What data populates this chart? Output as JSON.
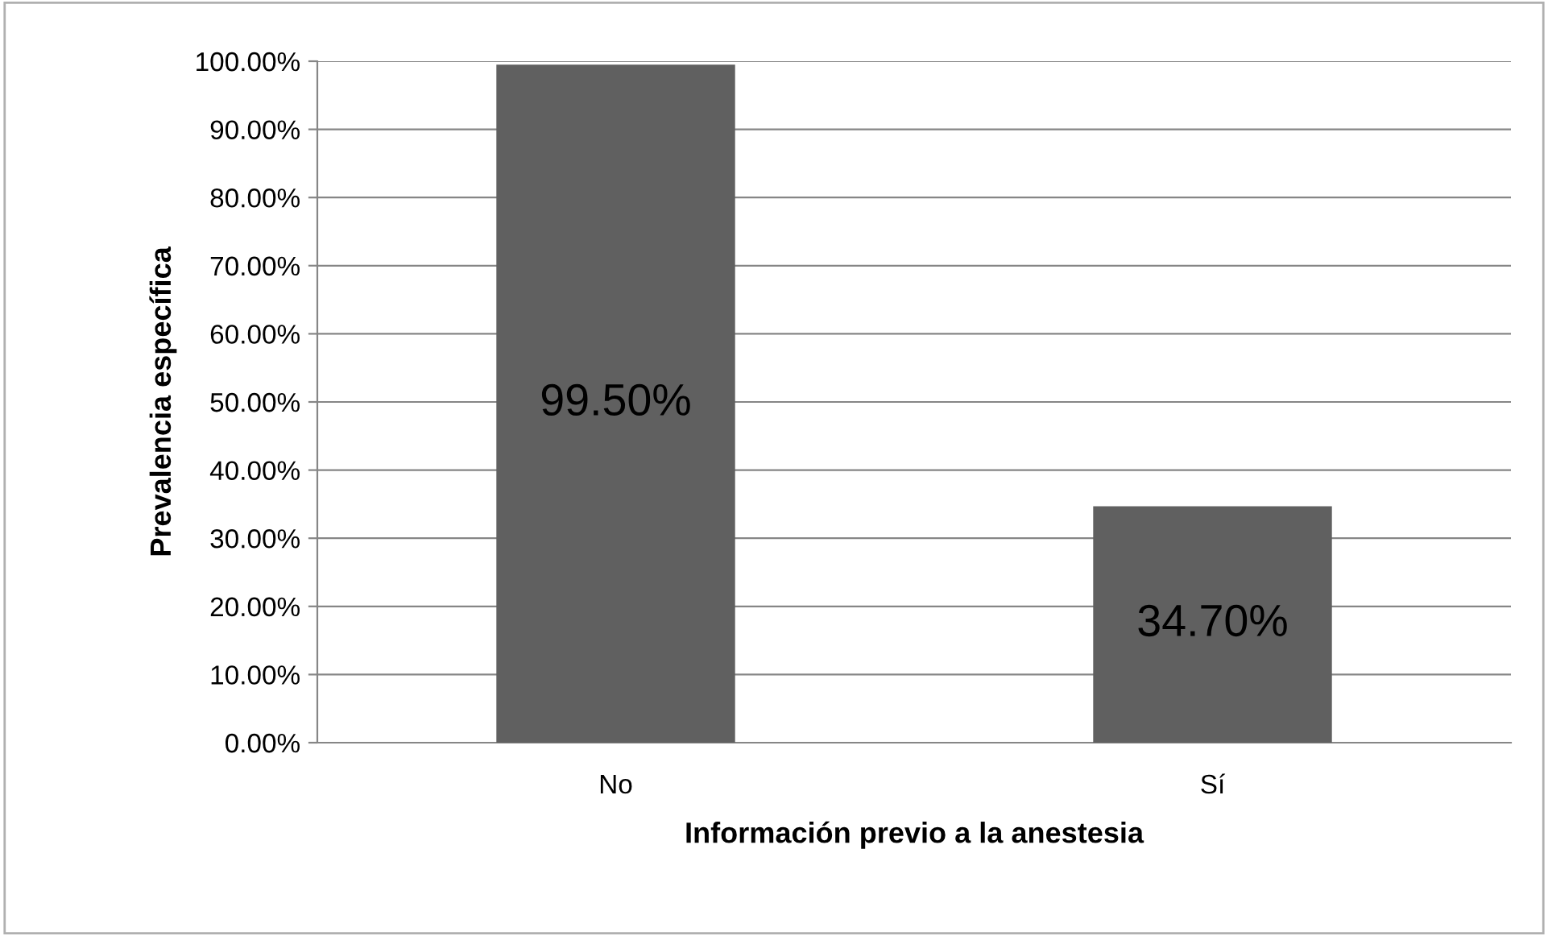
{
  "chart_data": {
    "type": "bar",
    "xlabel": "Información previo a la anestesia",
    "ylabel": "Prevalencia específica",
    "categories": [
      "No",
      "Sí"
    ],
    "values": [
      99.5,
      34.7
    ],
    "value_labels": [
      "99.50%",
      "34.70%"
    ],
    "color": "#606060",
    "ylim": [
      0,
      100
    ],
    "yticks": [
      {
        "value": 0,
        "label": "0.00%"
      },
      {
        "value": 10,
        "label": "10.00%"
      },
      {
        "value": 20,
        "label": "20.00%"
      },
      {
        "value": 30,
        "label": "30.00%"
      },
      {
        "value": 40,
        "label": "40.00%"
      },
      {
        "value": 50,
        "label": "50.00%"
      },
      {
        "value": 60,
        "label": "60.00%"
      },
      {
        "value": 70,
        "label": "70.00%"
      },
      {
        "value": 80,
        "label": "80.00%"
      },
      {
        "value": 90,
        "label": "90.00%"
      },
      {
        "value": 100,
        "label": "100.00%"
      }
    ],
    "grid": "y"
  }
}
